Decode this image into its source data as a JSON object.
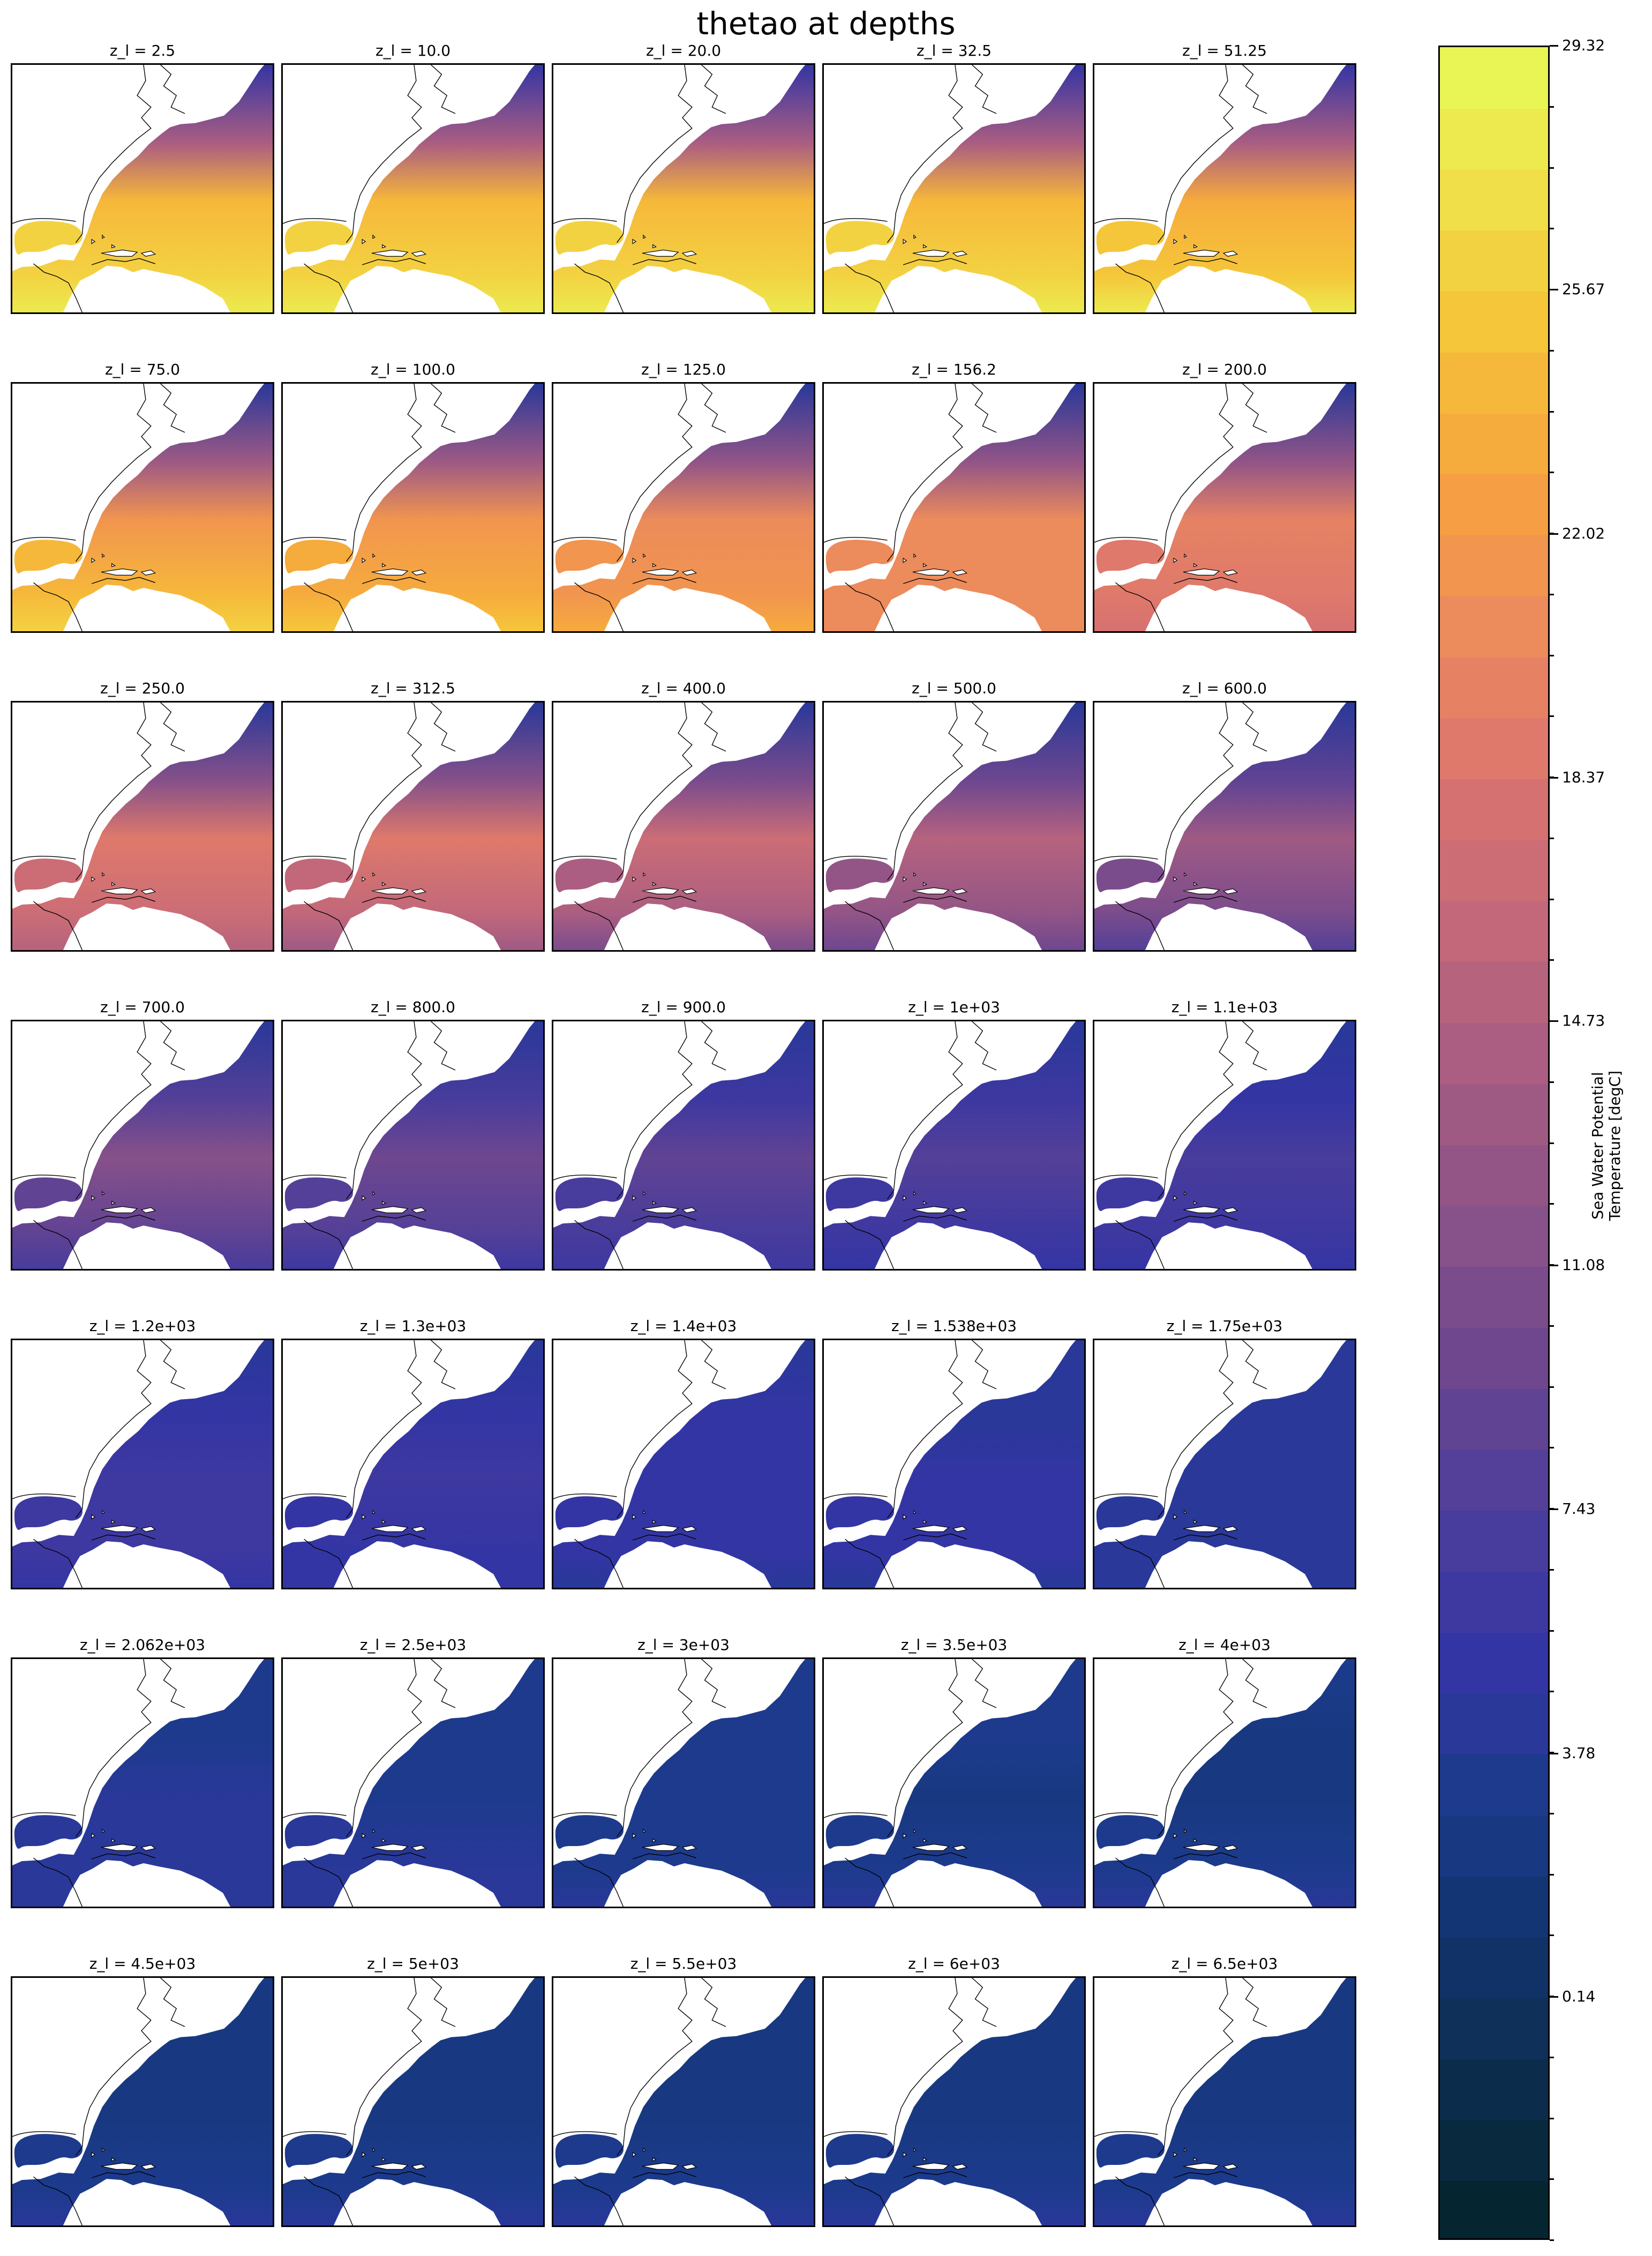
{
  "chart_data": {
    "type": "heatmap",
    "title": "thetao at depths",
    "panel_label_prefix": "z_l = ",
    "depths": [
      "2.5",
      "10.0",
      "20.0",
      "32.5",
      "51.25",
      "75.0",
      "100.0",
      "125.0",
      "156.2",
      "200.0",
      "250.0",
      "312.5",
      "400.0",
      "500.0",
      "600.0",
      "700.0",
      "800.0",
      "900.0",
      "1e+03",
      "1.1e+03",
      "1.2e+03",
      "1.3e+03",
      "1.4e+03",
      "1.538e+03",
      "1.75e+03",
      "2.062e+03",
      "2.5e+03",
      "3e+03",
      "3.5e+03",
      "4e+03",
      "4.5e+03",
      "5e+03",
      "5.5e+03",
      "6e+03",
      "6.5e+03"
    ],
    "grid": {
      "rows": 7,
      "cols": 5
    },
    "region": "North Atlantic / Gulf of Mexico / Caribbean",
    "colorbar": {
      "label_line1": "Sea Water Potential",
      "label_line2": "Temperature [degC]",
      "vmin": -3.5,
      "vmax": 29.32,
      "levels": 36,
      "tick_values": [
        0.14,
        3.78,
        7.43,
        11.08,
        14.73,
        18.37,
        22.02,
        25.67,
        29.32
      ],
      "tick_labels": [
        "0.14",
        "3.78",
        "7.43",
        "11.08",
        "14.73",
        "18.37",
        "22.02",
        "25.67",
        "29.32"
      ],
      "colormap": "thermal",
      "colors": [
        "#03232b",
        "#0b2d4a",
        "#12336b",
        "#1a3b8a",
        "#3535a5",
        "#4d3e9a",
        "#6d468f",
        "#8b5288",
        "#a75d82",
        "#c3687a",
        "#db746f",
        "#ec8a5c",
        "#f6a13f",
        "#f6c238",
        "#f0e04a",
        "#e6fa57"
      ]
    },
    "approx_surface_temperatures_degC": {
      "north_cold": [
        5,
        5,
        5,
        5,
        5,
        4,
        4,
        4,
        4,
        4,
        4,
        4,
        4,
        4,
        4,
        4,
        4,
        4,
        4,
        4,
        4,
        4,
        4,
        4,
        4,
        3,
        3,
        3,
        3,
        3,
        2,
        2,
        2,
        2,
        2
      ],
      "subtropical_gyre": [
        24,
        24,
        24,
        24,
        23,
        22,
        22,
        21,
        21,
        20,
        19,
        18.5,
        17,
        15,
        13.5,
        11.5,
        10,
        8.5,
        7.5,
        7,
        6.5,
        6,
        5.5,
        5,
        4.5,
        4,
        3.5,
        3,
        2.8,
        2.5,
        2.3,
        2.2,
        2.1,
        2,
        2
      ],
      "caribbean": [
        28,
        28,
        28,
        28,
        27.5,
        26.5,
        25,
        23,
        21,
        18,
        15,
        13,
        11,
        9.5,
        8,
        7,
        6.5,
        6,
        5.5,
        5,
        5,
        4.8,
        4.6,
        4.5,
        4.4,
        4.3,
        4.2,
        4.2,
        4.1,
        4.1,
        4,
        4,
        4,
        4,
        4
      ]
    }
  }
}
